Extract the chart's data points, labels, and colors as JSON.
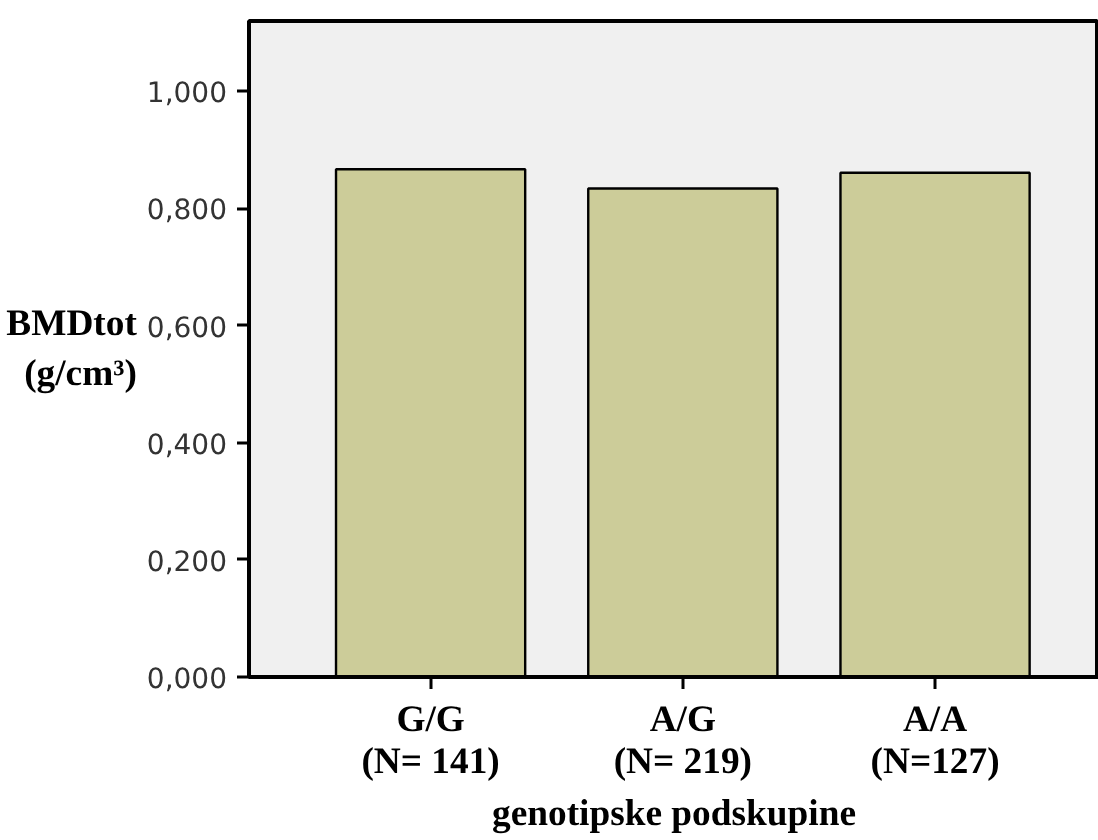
{
  "chart_data": {
    "type": "bar",
    "xlabel": "genotipske podskupine",
    "ylabel": "BMDtot\n(g/cm³)",
    "categories": [
      "G/G\n(N= 141)",
      "A/G\n(N= 219)",
      "A/A\n(N=127)"
    ],
    "values": [
      0.867,
      0.834,
      0.861
    ],
    "color": "#cccc99",
    "ylim": [
      0,
      1.12
    ],
    "yticks": [
      {
        "value": 0,
        "label": "0,000"
      },
      {
        "value": 0.2,
        "label": "0,200"
      },
      {
        "value": 0.4,
        "label": "0,400"
      },
      {
        "value": 0.6,
        "label": "0,600"
      },
      {
        "value": 0.8,
        "label": "0,800"
      },
      {
        "value": 1.0,
        "label": "1,000"
      }
    ],
    "grid": false
  }
}
